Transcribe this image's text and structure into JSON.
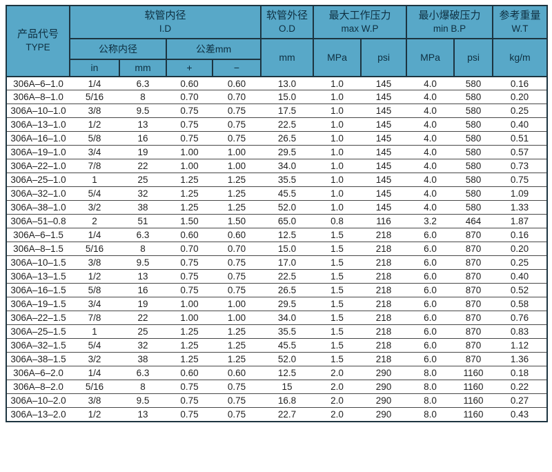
{
  "theme": {
    "header_bg": "#58a8c8",
    "header_text": "#0e2f40",
    "grid_line_dark": "#1c3440",
    "row_separator": "#464646",
    "data_text": "#1f1f1f",
    "page_bg": "#ffffff"
  },
  "table": {
    "header": {
      "type_cn": "产品代号",
      "type_en": "TYPE",
      "id_cn": "软管内径",
      "id_en": "I.D",
      "nominal_cn": "公称内径",
      "tolerance_cn": "公差mm",
      "unit_in": "in",
      "unit_mm": "mm",
      "tol_plus": "+",
      "tol_minus": "−",
      "od_cn": "软管外径",
      "od_en": "O.D",
      "od_unit": "mm",
      "wp_cn": "最大工作压力",
      "wp_en": "max W.P",
      "wp_unit_mpa": "MPa",
      "wp_unit_psi": "psi",
      "bp_cn": "最小爆破压力",
      "bp_en": "min B.P",
      "bp_unit_mpa": "MPa",
      "bp_unit_psi": "psi",
      "wt_cn": "参考重量",
      "wt_en": "W.T",
      "wt_unit": "kg/m"
    },
    "column_keys": [
      "type",
      "id-in",
      "id-mm",
      "tol-plus",
      "tol-minus",
      "od-mm",
      "wp-mpa",
      "wp-psi",
      "bp-mpa",
      "bp-psi",
      "wt-kgm"
    ],
    "rows": [
      [
        "306A–6–1.0",
        "1/4",
        "6.3",
        "0.60",
        "0.60",
        "13.0",
        "1.0",
        "145",
        "4.0",
        "580",
        "0.16"
      ],
      [
        "306A–8–1.0",
        "5/16",
        "8",
        "0.70",
        "0.70",
        "15.0",
        "1.0",
        "145",
        "4.0",
        "580",
        "0.20"
      ],
      [
        "306A–10–1.0",
        "3/8",
        "9.5",
        "0.75",
        "0.75",
        "17.5",
        "1.0",
        "145",
        "4.0",
        "580",
        "0.25"
      ],
      [
        "306A–13–1.0",
        "1/2",
        "13",
        "0.75",
        "0.75",
        "22.5",
        "1.0",
        "145",
        "4.0",
        "580",
        "0.40"
      ],
      [
        "306A–16–1.0",
        "5/8",
        "16",
        "0.75",
        "0.75",
        "26.5",
        "1.0",
        "145",
        "4.0",
        "580",
        "0.51"
      ],
      [
        "306A–19–1.0",
        "3/4",
        "19",
        "1.00",
        "1.00",
        "29.5",
        "1.0",
        "145",
        "4.0",
        "580",
        "0.57"
      ],
      [
        "306A–22–1.0",
        "7/8",
        "22",
        "1.00",
        "1.00",
        "34.0",
        "1.0",
        "145",
        "4.0",
        "580",
        "0.73"
      ],
      [
        "306A–25–1.0",
        "1",
        "25",
        "1.25",
        "1.25",
        "35.5",
        "1.0",
        "145",
        "4.0",
        "580",
        "0.75"
      ],
      [
        "306A–32–1.0",
        "5/4",
        "32",
        "1.25",
        "1.25",
        "45.5",
        "1.0",
        "145",
        "4.0",
        "580",
        "1.09"
      ],
      [
        "306A–38–1.0",
        "3/2",
        "38",
        "1.25",
        "1.25",
        "52.0",
        "1.0",
        "145",
        "4.0",
        "580",
        "1.33"
      ],
      [
        "306A–51–0.8",
        "2",
        "51",
        "1.50",
        "1.50",
        "65.0",
        "0.8",
        "116",
        "3.2",
        "464",
        "1.87"
      ],
      [
        "306A–6–1.5",
        "1/4",
        "6.3",
        "0.60",
        "0.60",
        "12.5",
        "1.5",
        "218",
        "6.0",
        "870",
        "0.16"
      ],
      [
        "306A–8–1.5",
        "5/16",
        "8",
        "0.70",
        "0.70",
        "15.0",
        "1.5",
        "218",
        "6.0",
        "870",
        "0.20"
      ],
      [
        "306A–10–1.5",
        "3/8",
        "9.5",
        "0.75",
        "0.75",
        "17.0",
        "1.5",
        "218",
        "6.0",
        "870",
        "0.25"
      ],
      [
        "306A–13–1.5",
        "1/2",
        "13",
        "0.75",
        "0.75",
        "22.5",
        "1.5",
        "218",
        "6.0",
        "870",
        "0.40"
      ],
      [
        "306A–16–1.5",
        "5/8",
        "16",
        "0.75",
        "0.75",
        "26.5",
        "1.5",
        "218",
        "6.0",
        "870",
        "0.52"
      ],
      [
        "306A–19–1.5",
        "3/4",
        "19",
        "1.00",
        "1.00",
        "29.5",
        "1.5",
        "218",
        "6.0",
        "870",
        "0.58"
      ],
      [
        "306A–22–1.5",
        "7/8",
        "22",
        "1.00",
        "1.00",
        "34.0",
        "1.5",
        "218",
        "6.0",
        "870",
        "0.76"
      ],
      [
        "306A–25–1.5",
        "1",
        "25",
        "1.25",
        "1.25",
        "35.5",
        "1.5",
        "218",
        "6.0",
        "870",
        "0.83"
      ],
      [
        "306A–32–1.5",
        "5/4",
        "32",
        "1.25",
        "1.25",
        "45.5",
        "1.5",
        "218",
        "6.0",
        "870",
        "1.12"
      ],
      [
        "306A–38–1.5",
        "3/2",
        "38",
        "1.25",
        "1.25",
        "52.0",
        "1.5",
        "218",
        "6.0",
        "870",
        "1.36"
      ],
      [
        "306A–6–2.0",
        "1/4",
        "6.3",
        "0.60",
        "0.60",
        "12.5",
        "2.0",
        "290",
        "8.0",
        "1160",
        "0.18"
      ],
      [
        "306A–8–2.0",
        "5/16",
        "8",
        "0.75",
        "0.75",
        "15",
        "2.0",
        "290",
        "8.0",
        "1160",
        "0.22"
      ],
      [
        "306A–10–2.0",
        "3/8",
        "9.5",
        "0.75",
        "0.75",
        "16.8",
        "2.0",
        "290",
        "8.0",
        "1160",
        "0.27"
      ],
      [
        "306A–13–2.0",
        "1/2",
        "13",
        "0.75",
        "0.75",
        "22.7",
        "2.0",
        "290",
        "8.0",
        "1160",
        "0.43"
      ]
    ]
  }
}
